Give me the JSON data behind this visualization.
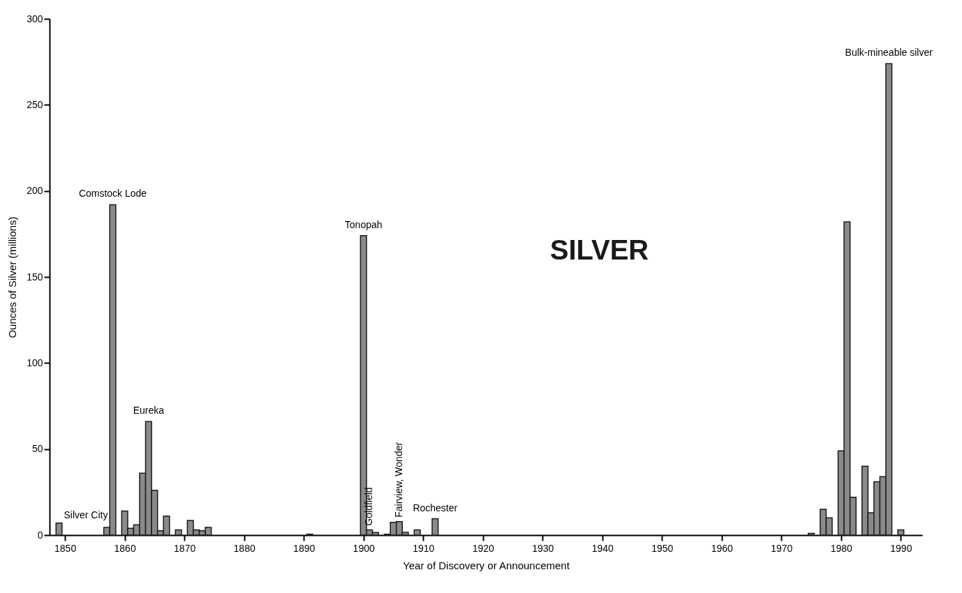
{
  "chart_data": {
    "type": "bar",
    "xlabel": "Year of Discovery or Announcement",
    "ylabel": "Ounces of Silver (millions)",
    "x": [
      1849,
      1857,
      1858,
      1860,
      1861,
      1862,
      1863,
      1864,
      1865,
      1866,
      1867,
      1869,
      1871,
      1872,
      1873,
      1874,
      1891,
      1900,
      1901,
      1902,
      1904,
      1905,
      1906,
      1907,
      1909,
      1912,
      1975,
      1977,
      1978,
      1980,
      1981,
      1982,
      1984,
      1985,
      1986,
      1987,
      1988,
      1990
    ],
    "values": [
      7,
      4.5,
      192,
      14,
      4,
      6,
      36,
      66,
      26,
      2.5,
      11,
      3,
      8.5,
      3,
      2.5,
      4.5,
      0.5,
      174,
      3,
      1.5,
      0.5,
      7.4,
      7.8,
      1.6,
      3,
      9.5,
      1,
      15,
      10,
      49,
      182,
      22,
      40,
      13,
      31,
      34,
      274,
      3
    ],
    "color": "#8a8a8a",
    "xlim": [
      1848,
      1993
    ],
    "xticks": [
      1850,
      1860,
      1870,
      1880,
      1890,
      1900,
      1910,
      1920,
      1930,
      1940,
      1950,
      1960,
      1970,
      1980,
      1990
    ],
    "ylim": [
      0,
      300
    ],
    "yticks": [
      0,
      50,
      100,
      150,
      200,
      250,
      300
    ],
    "grid": false,
    "annotations": [
      {
        "text": "Silver City",
        "x": 1849,
        "y": 7
      },
      {
        "text": "Comstock Lode",
        "x": 1858,
        "y": 192
      },
      {
        "text": "Eureka",
        "x": 1864,
        "y": 66
      },
      {
        "text": "Tonopah",
        "x": 1900,
        "y": 174
      },
      {
        "text": "Goldfield",
        "x": 1901,
        "y": 3
      },
      {
        "text": "Fairview, Wonder",
        "x": 1906,
        "y": 7.8
      },
      {
        "text": "Rochester",
        "x": 1912,
        "y": 9.5
      },
      {
        "text": "Bulk-mineable silver",
        "x": 1988,
        "y": 274
      },
      "SILVER"
    ]
  }
}
